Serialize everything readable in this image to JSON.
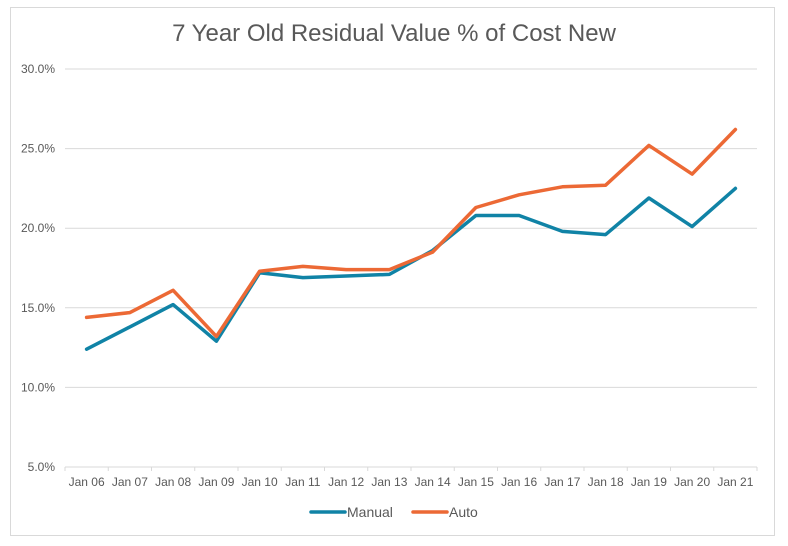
{
  "chart_data": {
    "type": "line",
    "title": "7 Year Old Residual Value % of Cost New",
    "xlabel": "",
    "ylabel": "",
    "categories": [
      "Jan 06",
      "Jan 07",
      "Jan 08",
      "Jan 09",
      "Jan 10",
      "Jan 11",
      "Jan 12",
      "Jan 13",
      "Jan 14",
      "Jan 15",
      "Jan 16",
      "Jan 17",
      "Jan 18",
      "Jan 19",
      "Jan 20",
      "Jan 21"
    ],
    "series": [
      {
        "name": "Manual",
        "color": "#1083A6",
        "values": [
          12.4,
          13.8,
          15.2,
          12.9,
          17.2,
          16.9,
          17.0,
          17.1,
          18.6,
          20.8,
          20.8,
          19.8,
          19.6,
          21.9,
          20.1,
          22.5
        ]
      },
      {
        "name": "Auto",
        "color": "#EC6935",
        "values": [
          14.4,
          14.7,
          16.1,
          13.2,
          17.3,
          17.6,
          17.4,
          17.4,
          18.5,
          21.3,
          22.1,
          22.6,
          22.7,
          25.2,
          23.4,
          26.2
        ]
      }
    ],
    "ylim": [
      5,
      30
    ],
    "yticks": [
      5,
      10,
      15,
      20,
      25,
      30
    ],
    "ytick_labels": [
      "5.0%",
      "10.0%",
      "15.0%",
      "20.0%",
      "25.0%",
      "30.0%"
    ],
    "grid": true,
    "legend": "bottom"
  }
}
